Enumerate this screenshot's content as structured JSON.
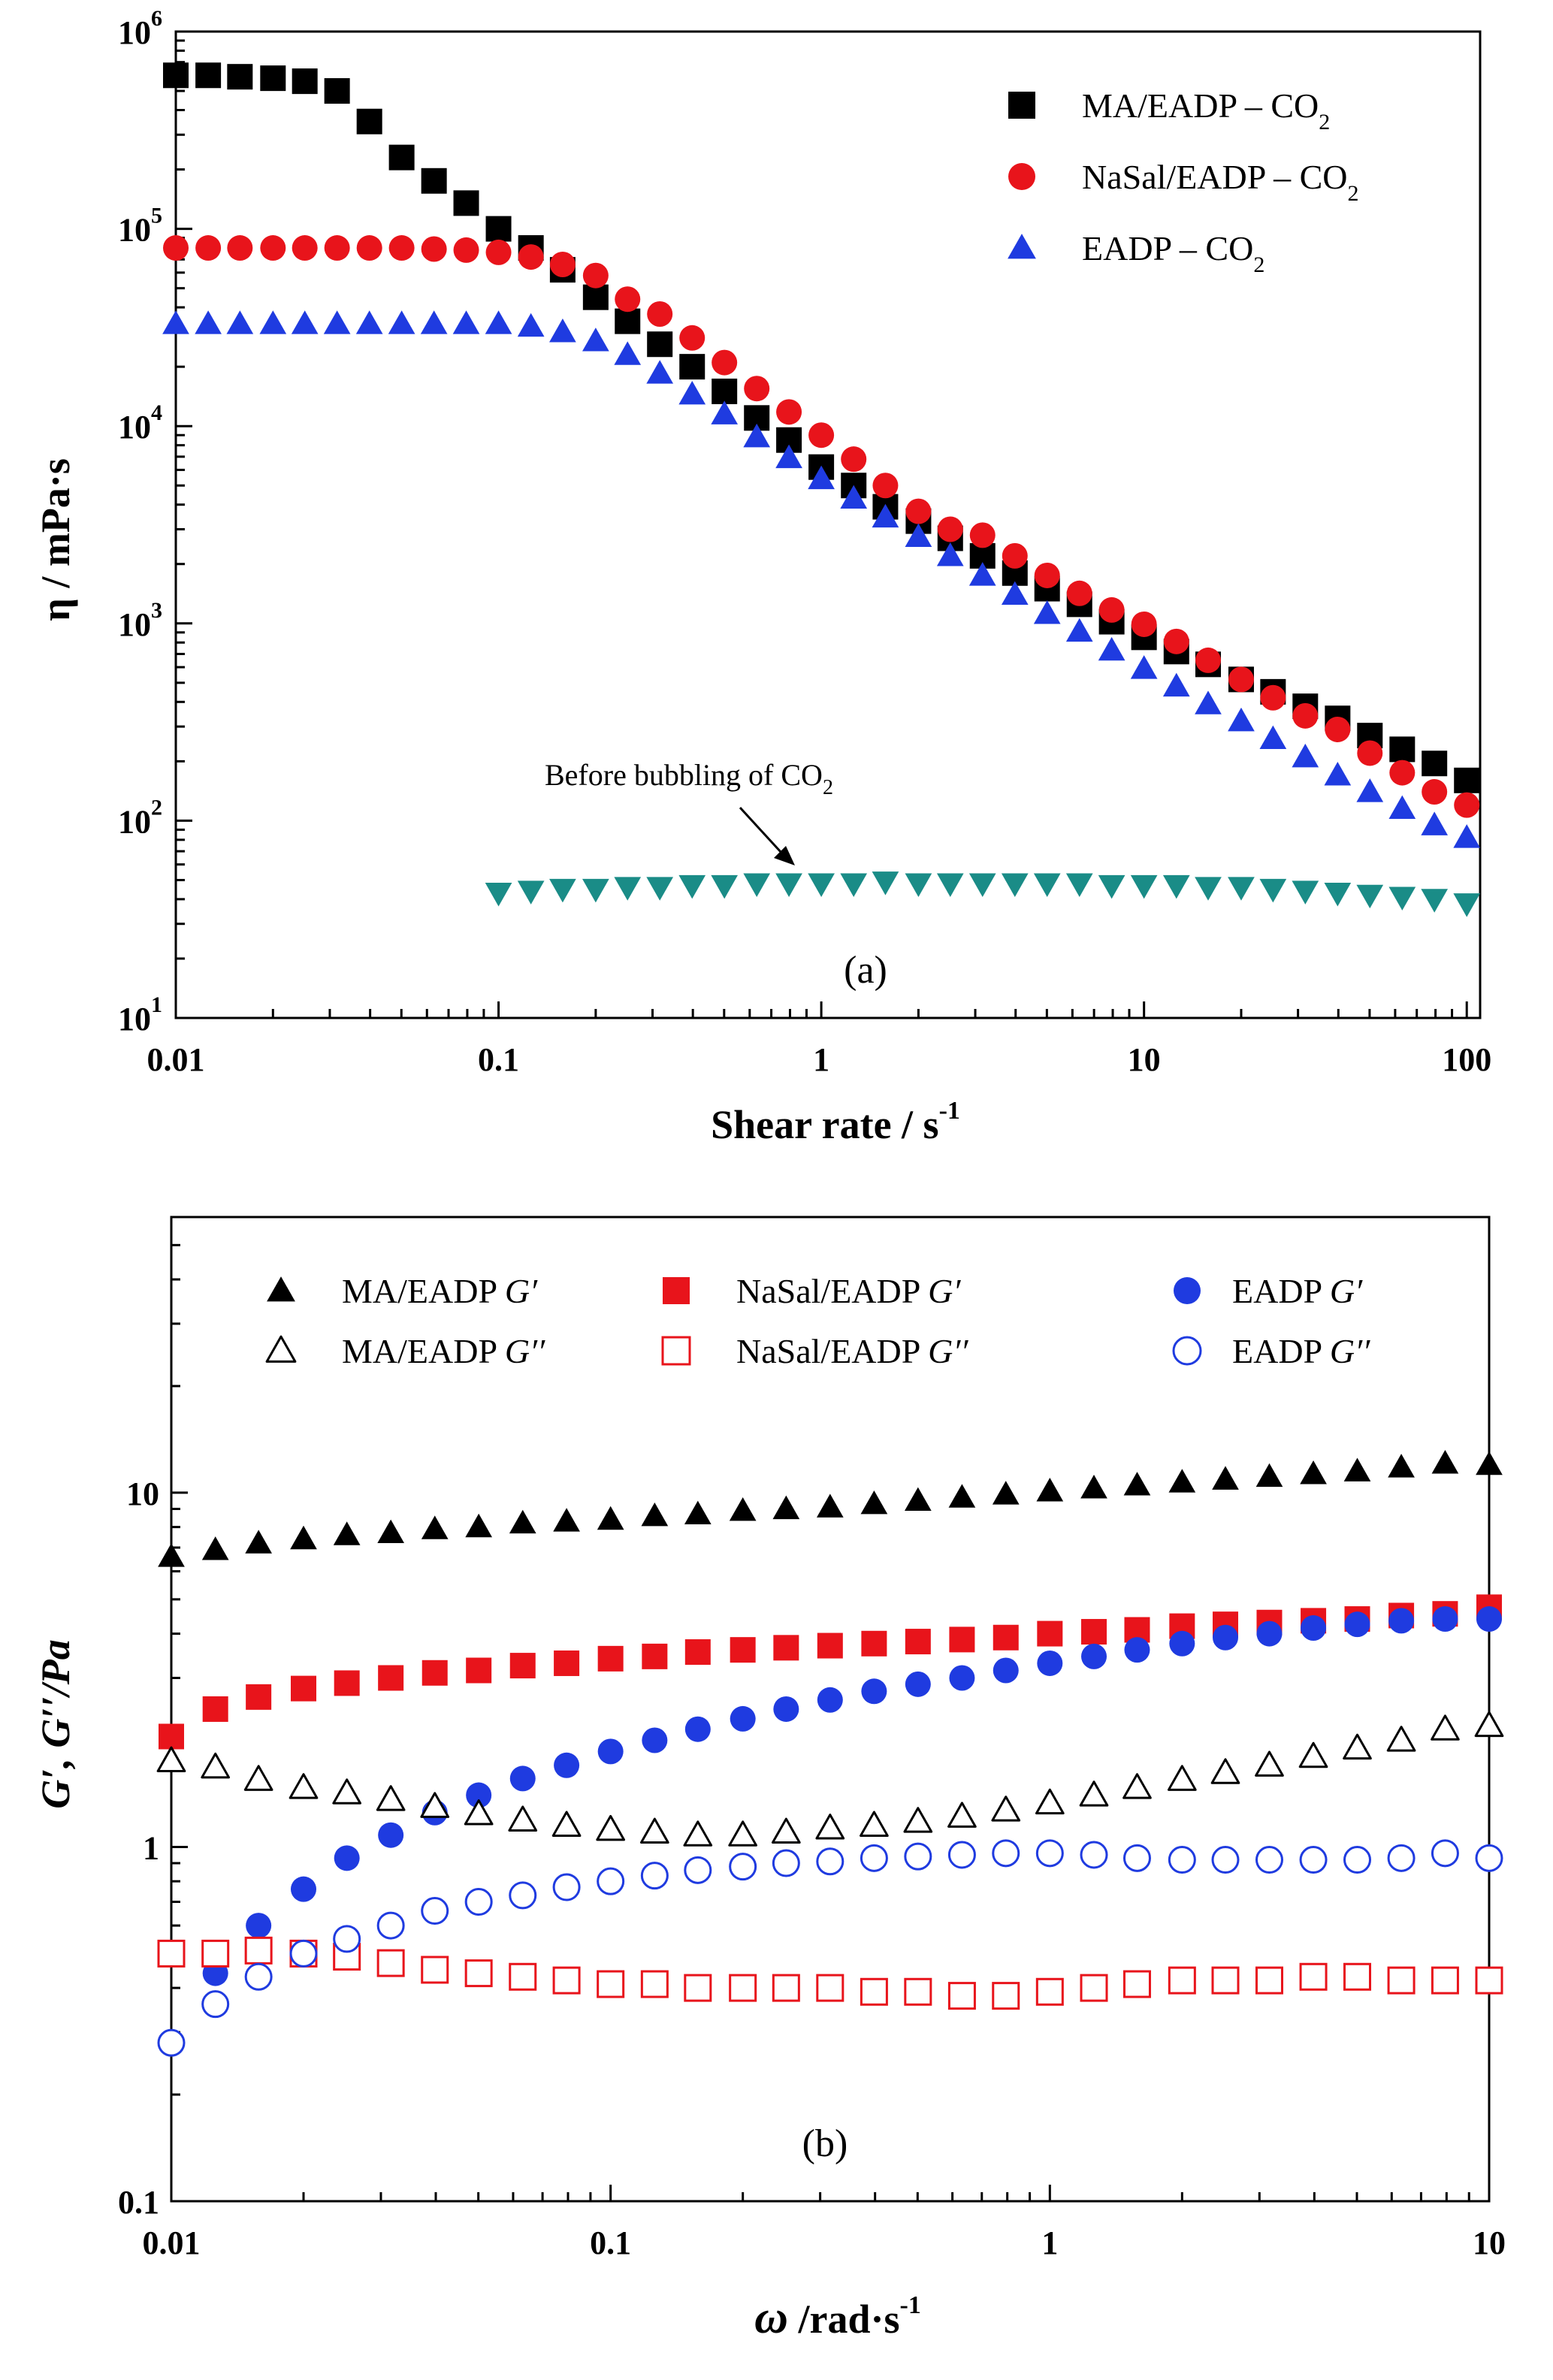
{
  "chart_data": [
    {
      "type": "scatter",
      "panel": "(a)",
      "xscale": "log",
      "yscale": "log",
      "xlabel": "Shear rate / s",
      "xlabel_sup": "-1",
      "ylabel": "η / mPa·s",
      "xlim": [
        0.01,
        110
      ],
      "ylim": [
        10,
        1000000
      ],
      "x_ticks": [
        0.01,
        0.1,
        1,
        10,
        100
      ],
      "x_tick_labels": [
        "0.01",
        "0.1",
        "1",
        "10",
        "100"
      ],
      "y_ticks": [
        10,
        100,
        1000,
        10000,
        100000,
        1000000
      ],
      "y_tick_labels": [
        {
          "base": "10",
          "exp": "1"
        },
        {
          "base": "10",
          "exp": "2"
        },
        {
          "base": "10",
          "exp": "3"
        },
        {
          "base": "10",
          "exp": "4"
        },
        {
          "base": "10",
          "exp": "5"
        },
        {
          "base": "10",
          "exp": "6"
        }
      ],
      "annotation": {
        "text": "Before bubbling of CO",
        "sub": "2",
        "arrow_to": [
          0.9,
          48
        ]
      },
      "legend": {
        "position": "top-right",
        "entries": [
          {
            "label": "MA/EADP – CO",
            "sub": "2",
            "marker": "square",
            "color": "#000000",
            "filled": true
          },
          {
            "label": "NaSal/EADP – CO",
            "sub": "2",
            "marker": "circle",
            "color": "#e8141b",
            "filled": true
          },
          {
            "label": "EADP – CO",
            "sub": "2",
            "marker": "triangle",
            "color": "#1f3be0",
            "filled": true
          }
        ]
      },
      "series": [
        {
          "name": "MA/EADP – CO2",
          "marker": "square",
          "color": "#000000",
          "filled": true,
          "x": [
            0.01,
            0.0126,
            0.0158,
            0.02,
            0.0251,
            0.0316,
            0.0398,
            0.0501,
            0.0631,
            0.0794,
            0.1,
            0.126,
            0.158,
            0.2,
            0.251,
            0.316,
            0.398,
            0.501,
            0.631,
            0.794,
            1.0,
            1.26,
            1.58,
            2.0,
            2.51,
            3.16,
            3.98,
            5.01,
            6.31,
            7.94,
            10.0,
            12.6,
            15.8,
            20.0,
            25.1,
            31.6,
            39.8,
            50.1,
            63.1,
            79.4,
            100
          ],
          "y": [
            600000,
            600000,
            590000,
            580000,
            560000,
            500000,
            350000,
            230000,
            175000,
            135000,
            100000,
            80000,
            62000,
            45000,
            34000,
            26000,
            20000,
            15000,
            11000,
            8500,
            6200,
            5000,
            3900,
            3300,
            2700,
            2200,
            1800,
            1500,
            1250,
            1020,
            850,
            720,
            620,
            520,
            450,
            380,
            330,
            270,
            230,
            195,
            160
          ]
        },
        {
          "name": "NaSal/EADP – CO2",
          "marker": "circle",
          "color": "#e8141b",
          "filled": true,
          "x": [
            0.01,
            0.0126,
            0.0158,
            0.02,
            0.0251,
            0.0316,
            0.0398,
            0.0501,
            0.0631,
            0.0794,
            0.1,
            0.126,
            0.158,
            0.2,
            0.251,
            0.316,
            0.398,
            0.501,
            0.631,
            0.794,
            1.0,
            1.26,
            1.58,
            2.0,
            2.51,
            3.16,
            3.98,
            5.01,
            6.31,
            7.94,
            10.0,
            12.6,
            15.8,
            20.0,
            25.1,
            31.6,
            39.8,
            50.1,
            63.1,
            79.4,
            100
          ],
          "y": [
            80000,
            80000,
            80000,
            80000,
            80000,
            80000,
            80000,
            80000,
            79000,
            78000,
            76000,
            72000,
            66000,
            58000,
            44000,
            37000,
            28000,
            21000,
            15500,
            11800,
            9000,
            6800,
            5000,
            3700,
            3000,
            2800,
            2200,
            1750,
            1420,
            1170,
            990,
            810,
            650,
            520,
            420,
            340,
            290,
            220,
            175,
            140,
            120
          ]
        },
        {
          "name": "EADP – CO2",
          "marker": "triangle",
          "color": "#1f3be0",
          "filled": true,
          "x": [
            0.01,
            0.0126,
            0.0158,
            0.02,
            0.0251,
            0.0316,
            0.0398,
            0.0501,
            0.0631,
            0.0794,
            0.1,
            0.126,
            0.158,
            0.2,
            0.251,
            0.316,
            0.398,
            0.501,
            0.631,
            0.794,
            1.0,
            1.26,
            1.58,
            2.0,
            2.51,
            3.16,
            3.98,
            5.01,
            6.31,
            7.94,
            10.0,
            12.6,
            15.8,
            20.0,
            25.1,
            31.6,
            39.8,
            50.1,
            63.1,
            79.4,
            100
          ],
          "y": [
            33000,
            33000,
            33000,
            33000,
            33000,
            33000,
            33000,
            33000,
            33000,
            33000,
            33000,
            32000,
            30000,
            27000,
            23000,
            18500,
            14500,
            11500,
            8800,
            6900,
            5400,
            4300,
            3450,
            2750,
            2200,
            1750,
            1400,
            1120,
            910,
            730,
            590,
            480,
            390,
            320,
            260,
            210,
            170,
            140,
            115,
            95,
            82
          ]
        },
        {
          "name": "Before bubbling of CO2",
          "marker": "triangle-down",
          "color": "#1a8c87",
          "filled": true,
          "x": [
            0.1,
            0.126,
            0.158,
            0.2,
            0.251,
            0.316,
            0.398,
            0.501,
            0.631,
            0.794,
            1.0,
            1.26,
            1.58,
            2.0,
            2.51,
            3.16,
            3.98,
            5.01,
            6.31,
            7.94,
            10.0,
            12.6,
            15.8,
            20.0,
            25.1,
            31.6,
            39.8,
            50.1,
            63.1,
            79.4,
            100
          ],
          "y": [
            43,
            44,
            45,
            45,
            46,
            46,
            47,
            47,
            48,
            48,
            48,
            48,
            49,
            48,
            48,
            48,
            48,
            48,
            48,
            47,
            47,
            47,
            46,
            46,
            45,
            44,
            43,
            42,
            41,
            40,
            38
          ]
        }
      ]
    },
    {
      "type": "scatter",
      "panel": "(b)",
      "xscale": "log",
      "yscale": "log",
      "xlabel": "/rad·s",
      "xlabel_symbol": "ω",
      "xlabel_sup": "-1",
      "ylabel": "G′, G′′/Pa",
      "xlim": [
        0.01,
        10
      ],
      "ylim": [
        0.1,
        60
      ],
      "x_ticks": [
        0.01,
        0.1,
        1,
        10
      ],
      "x_tick_labels": [
        "0.01",
        "0.1",
        "1",
        "10"
      ],
      "y_ticks": [
        0.1,
        1,
        10
      ],
      "y_tick_labels": [
        "0.1",
        "1",
        "10"
      ],
      "legend": {
        "position": "top",
        "entries": [
          {
            "label": "MA/EADP ",
            "mod": "G′",
            "marker": "triangle",
            "color": "#000000",
            "filled": true
          },
          {
            "label": "NaSal/EADP ",
            "mod": "G′",
            "marker": "square",
            "color": "#e8141b",
            "filled": true
          },
          {
            "label": "EADP  ",
            "mod": "G′",
            "marker": "circle",
            "color": "#1f3be0",
            "filled": true
          },
          {
            "label": "MA/EADP ",
            "mod": "G′′",
            "marker": "triangle",
            "color": "#000000",
            "filled": false
          },
          {
            "label": "NaSal/EADP ",
            "mod": "G′′",
            "marker": "square",
            "color": "#e8141b",
            "filled": false
          },
          {
            "label": "EADP  ",
            "mod": "G′′",
            "marker": "circle",
            "color": "#1f3be0",
            "filled": false
          }
        ]
      },
      "series": [
        {
          "name": "MA/EADP G′",
          "marker": "triangle",
          "color": "#000000",
          "filled": true,
          "x": [
            0.01,
            0.0126,
            0.0158,
            0.02,
            0.0251,
            0.0316,
            0.0398,
            0.0501,
            0.0631,
            0.0794,
            0.1,
            0.126,
            0.158,
            0.2,
            0.251,
            0.316,
            0.398,
            0.501,
            0.631,
            0.794,
            1.0,
            1.26,
            1.58,
            2.0,
            2.51,
            3.16,
            3.98,
            5.01,
            6.31,
            7.94,
            10.0
          ],
          "y": [
            6.6,
            6.9,
            7.2,
            7.4,
            7.6,
            7.7,
            7.9,
            8.0,
            8.2,
            8.3,
            8.4,
            8.6,
            8.7,
            8.9,
            9.0,
            9.1,
            9.3,
            9.5,
            9.7,
            9.9,
            10.1,
            10.3,
            10.5,
            10.7,
            10.9,
            11.1,
            11.3,
            11.5,
            11.8,
            12.1,
            12.0
          ]
        },
        {
          "name": "NaSal/EADP G′",
          "marker": "square",
          "color": "#e8141b",
          "filled": true,
          "x": [
            0.01,
            0.0126,
            0.0158,
            0.02,
            0.0251,
            0.0316,
            0.0398,
            0.0501,
            0.0631,
            0.0794,
            0.1,
            0.126,
            0.158,
            0.2,
            0.251,
            0.316,
            0.398,
            0.501,
            0.631,
            0.794,
            1.0,
            1.26,
            1.58,
            2.0,
            2.51,
            3.16,
            3.98,
            5.01,
            6.31,
            7.94,
            10.0
          ],
          "y": [
            2.05,
            2.45,
            2.65,
            2.8,
            2.9,
            3.0,
            3.1,
            3.15,
            3.25,
            3.3,
            3.4,
            3.45,
            3.55,
            3.6,
            3.65,
            3.7,
            3.75,
            3.8,
            3.85,
            3.9,
            4.0,
            4.05,
            4.1,
            4.2,
            4.25,
            4.3,
            4.35,
            4.4,
            4.5,
            4.55,
            4.75
          ]
        },
        {
          "name": "EADP G′",
          "marker": "circle",
          "color": "#1f3be0",
          "filled": true,
          "x": [
            0.0126,
            0.0158,
            0.02,
            0.0251,
            0.0316,
            0.0398,
            0.0501,
            0.0631,
            0.0794,
            0.1,
            0.126,
            0.158,
            0.2,
            0.251,
            0.316,
            0.398,
            0.501,
            0.631,
            0.794,
            1.0,
            1.26,
            1.58,
            2.0,
            2.51,
            3.16,
            3.98,
            5.01,
            6.31,
            7.94,
            10.0
          ],
          "y": [
            0.44,
            0.6,
            0.76,
            0.93,
            1.08,
            1.25,
            1.4,
            1.56,
            1.7,
            1.86,
            2.0,
            2.15,
            2.3,
            2.45,
            2.6,
            2.75,
            2.88,
            3.0,
            3.15,
            3.3,
            3.45,
            3.6,
            3.75,
            3.9,
            4.0,
            4.15,
            4.25,
            4.35,
            4.4,
            4.4
          ]
        },
        {
          "name": "MA/EADP G′′",
          "marker": "triangle",
          "color": "#000000",
          "filled": false,
          "x": [
            0.01,
            0.0126,
            0.0158,
            0.02,
            0.0251,
            0.0316,
            0.0398,
            0.0501,
            0.0631,
            0.0794,
            0.1,
            0.126,
            0.158,
            0.2,
            0.251,
            0.316,
            0.398,
            0.501,
            0.631,
            0.794,
            1.0,
            1.26,
            1.58,
            2.0,
            2.51,
            3.16,
            3.98,
            5.01,
            6.31,
            7.94,
            10.0
          ],
          "y": [
            1.75,
            1.68,
            1.55,
            1.47,
            1.42,
            1.36,
            1.3,
            1.24,
            1.19,
            1.15,
            1.12,
            1.1,
            1.08,
            1.08,
            1.1,
            1.13,
            1.15,
            1.18,
            1.22,
            1.27,
            1.33,
            1.4,
            1.47,
            1.55,
            1.62,
            1.7,
            1.8,
            1.9,
            2.0,
            2.15,
            2.2
          ]
        },
        {
          "name": "NaSal/EADP G′′",
          "marker": "square",
          "color": "#e8141b",
          "filled": false,
          "x": [
            0.01,
            0.0126,
            0.0158,
            0.02,
            0.0251,
            0.0316,
            0.0398,
            0.0501,
            0.0631,
            0.0794,
            0.1,
            0.126,
            0.158,
            0.2,
            0.251,
            0.316,
            0.398,
            0.501,
            0.631,
            0.794,
            1.0,
            1.26,
            1.58,
            2.0,
            2.51,
            3.16,
            3.98,
            5.01,
            6.31,
            7.94,
            10.0
          ],
          "y": [
            0.5,
            0.5,
            0.51,
            0.5,
            0.49,
            0.47,
            0.45,
            0.44,
            0.43,
            0.42,
            0.41,
            0.41,
            0.4,
            0.4,
            0.4,
            0.4,
            0.39,
            0.39,
            0.38,
            0.38,
            0.39,
            0.4,
            0.41,
            0.42,
            0.42,
            0.42,
            0.43,
            0.43,
            0.42,
            0.42,
            0.42
          ]
        },
        {
          "name": "EADP G′′",
          "marker": "circle",
          "color": "#1f3be0",
          "filled": false,
          "x": [
            0.01,
            0.0126,
            0.0158,
            0.02,
            0.0251,
            0.0316,
            0.0398,
            0.0501,
            0.0631,
            0.0794,
            0.1,
            0.126,
            0.158,
            0.2,
            0.251,
            0.316,
            0.398,
            0.501,
            0.631,
            0.794,
            1.0,
            1.26,
            1.58,
            2.0,
            2.51,
            3.16,
            3.98,
            5.01,
            6.31,
            7.94,
            10.0
          ],
          "y": [
            0.28,
            0.36,
            0.43,
            0.5,
            0.55,
            0.6,
            0.66,
            0.7,
            0.73,
            0.77,
            0.8,
            0.83,
            0.86,
            0.88,
            0.9,
            0.91,
            0.93,
            0.94,
            0.95,
            0.96,
            0.96,
            0.95,
            0.93,
            0.92,
            0.92,
            0.92,
            0.92,
            0.92,
            0.93,
            0.96,
            0.93
          ]
        }
      ]
    }
  ]
}
